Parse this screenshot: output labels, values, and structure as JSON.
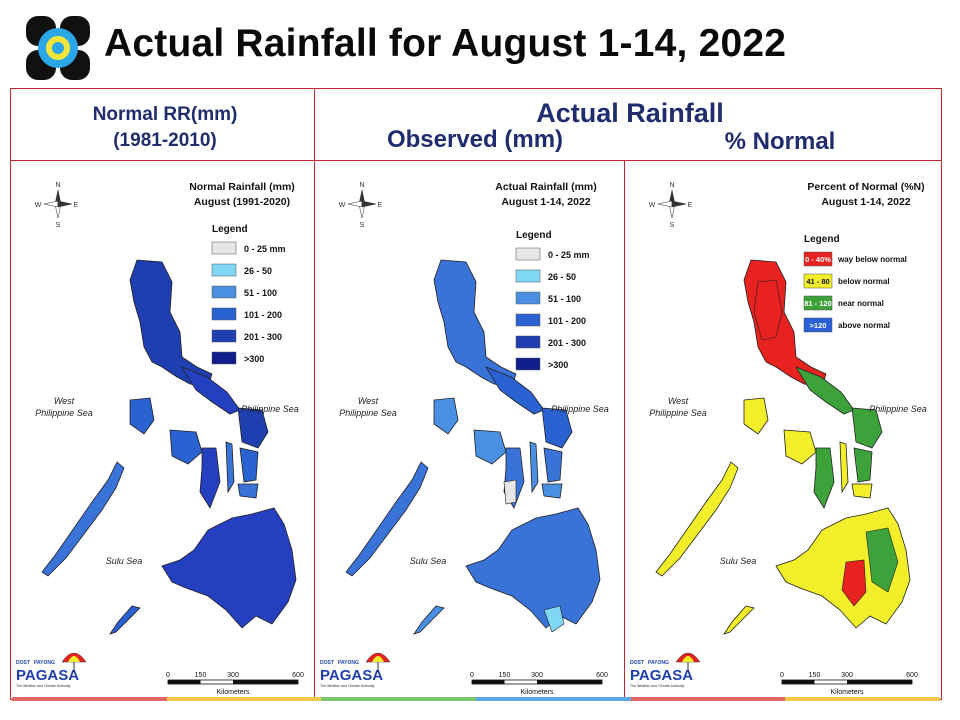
{
  "header": {
    "title": "Actual Rainfall for August 1-14, 2022"
  },
  "columns": {
    "normal_heading_1": "Normal RR(mm)",
    "normal_heading_2": "(1981-2010)",
    "actual_heading": "Actual Rainfall",
    "observed_heading": "Observed (mm)",
    "percent_heading": "% Normal"
  },
  "maps": [
    {
      "title_1": "Normal Rainfall (mm)",
      "title_2": "August (1991-2020)",
      "legend_title": "Legend",
      "legend": [
        {
          "label": "0 - 25 mm",
          "color": "#e6e6e6"
        },
        {
          "label": "26 - 50",
          "color": "#7fd6f5"
        },
        {
          "label": "51 - 100",
          "color": "#4a90e2"
        },
        {
          "label": "101 - 200",
          "color": "#2b62d1"
        },
        {
          "label": "201 - 300",
          "color": "#1f3fb0"
        },
        {
          "label": ">300",
          "color": "#0f1e8c"
        }
      ],
      "sea_west": [
        "West",
        "Philippine Sea"
      ],
      "sea_east": "Philippine Sea",
      "sea_south": "Sulu Sea",
      "scale_ticks": [
        "0",
        "150",
        "300",
        "600"
      ],
      "scale_unit": "Kilometers",
      "dominant_color": "#2440c0"
    },
    {
      "title_1": "Actual Rainfall (mm)",
      "title_2": "August 1-14, 2022",
      "legend_title": "Legend",
      "legend": [
        {
          "label": "0 - 25 mm",
          "color": "#e6e6e6"
        },
        {
          "label": "26 - 50",
          "color": "#7fd6f5"
        },
        {
          "label": "51 - 100",
          "color": "#4a90e2"
        },
        {
          "label": "101 - 200",
          "color": "#2b62d1"
        },
        {
          "label": "201 - 300",
          "color": "#1f3fb0"
        },
        {
          "label": ">300",
          "color": "#0f1e8c"
        }
      ],
      "sea_west": [
        "West",
        "Philippine Sea"
      ],
      "sea_east": "Philippine Sea",
      "sea_south": "Sulu Sea",
      "scale_ticks": [
        "0",
        "150",
        "300",
        "600"
      ],
      "scale_unit": "Kilometers",
      "dominant_color": "#3a73d8"
    },
    {
      "title_1": "Percent of Normal (%N)",
      "title_2": "August 1-14, 2022",
      "legend_title": "Legend",
      "legend": [
        {
          "label": "0 - 40%",
          "desc": "way below normal",
          "color": "#e8231f"
        },
        {
          "label": "41 - 80",
          "desc": "below normal",
          "color": "#f2ee2a"
        },
        {
          "label": "81 - 120",
          "desc": "near normal",
          "color": "#3da23a"
        },
        {
          "label": ">120",
          "desc": "above normal",
          "color": "#2a5fd8"
        }
      ],
      "sea_west": [
        "West",
        "Philippine Sea"
      ],
      "sea_east": "Philippine Sea",
      "sea_south": "Sulu Sea",
      "scale_ticks": [
        "0",
        "150",
        "300",
        "600"
      ],
      "scale_unit": "Kilometers",
      "dominant_color": "#f2ee2a"
    }
  ],
  "branding": {
    "agency_top": "DOST",
    "agency_sub": "PAYONG",
    "agency_name": "PAGASA",
    "tagline": "The Weather and Climate Authority"
  }
}
